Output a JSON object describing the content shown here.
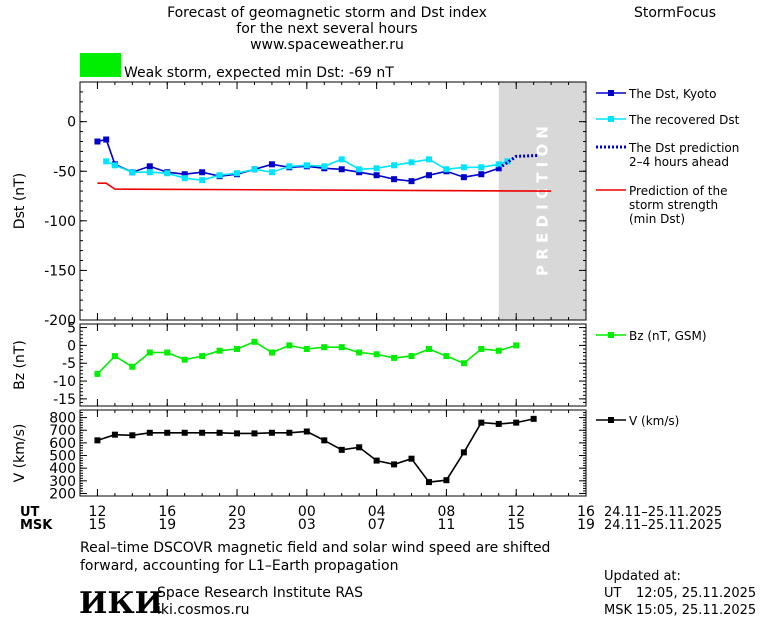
{
  "header": {
    "title_line1": "Forecast of geomagnetic storm and Dst index",
    "title_line2": "for the next several hours",
    "website": "www.spaceweather.ru",
    "brand": "StormFocus",
    "storm_label": "Weak storm, expected min Dst: -69 nT",
    "storm_color": "#00ee00"
  },
  "time_axis": {
    "ut_label": "UT",
    "msk_label": "MSK",
    "ut_ticks": [
      "12",
      "16",
      "20",
      "00",
      "04",
      "08",
      "12",
      "16"
    ],
    "msk_ticks": [
      "15",
      "19",
      "23",
      "03",
      "07",
      "11",
      "15",
      "19"
    ],
    "ut_date_range": "24.11–25.11.2025",
    "msk_date_range": "24.11–25.11.2025"
  },
  "prediction_band": {
    "label": "P R E D I C T I O N",
    "color": "#d8d8d8"
  },
  "chart_data": [
    {
      "type": "line",
      "ylabel": "Dst (nT)",
      "ylim": [
        -200,
        40
      ],
      "yticks": [
        0,
        -50,
        -100,
        -150,
        -200
      ],
      "series": [
        {
          "name": "The Dst, Kyoto",
          "color": "#0000cc",
          "marker": "square",
          "points": [
            [
              12.0,
              -20
            ],
            [
              12.5,
              -18
            ],
            [
              13.0,
              -43
            ],
            [
              14.0,
              -51
            ],
            [
              15.0,
              -45
            ],
            [
              16.0,
              -51
            ],
            [
              17.0,
              -53
            ],
            [
              18.0,
              -51
            ],
            [
              19.0,
              -55
            ],
            [
              20.0,
              -53
            ],
            [
              21.0,
              -48
            ],
            [
              22.0,
              -43
            ],
            [
              23.0,
              -46
            ],
            [
              24.0,
              -45
            ],
            [
              25.0,
              -47
            ],
            [
              26.0,
              -48
            ],
            [
              27.0,
              -51
            ],
            [
              28.0,
              -54
            ],
            [
              29.0,
              -58
            ],
            [
              30.0,
              -60
            ],
            [
              31.0,
              -54
            ],
            [
              32.0,
              -50
            ],
            [
              33.0,
              -56
            ],
            [
              34.0,
              -53
            ],
            [
              35.0,
              -47
            ]
          ]
        },
        {
          "name": "The recovered Dst",
          "color": "#00e5ff",
          "marker": "square",
          "points": [
            [
              12.5,
              -40
            ],
            [
              13.0,
              -44
            ],
            [
              14.0,
              -51
            ],
            [
              15.0,
              -51
            ],
            [
              16.0,
              -52
            ],
            [
              17.0,
              -57
            ],
            [
              18.0,
              -59
            ],
            [
              19.0,
              -54
            ],
            [
              20.0,
              -52
            ],
            [
              21.0,
              -48
            ],
            [
              22.0,
              -51
            ],
            [
              23.0,
              -45
            ],
            [
              24.0,
              -44
            ],
            [
              25.0,
              -45
            ],
            [
              26.0,
              -38
            ],
            [
              27.0,
              -48
            ],
            [
              28.0,
              -47
            ],
            [
              29.0,
              -44
            ],
            [
              30.0,
              -41
            ],
            [
              31.0,
              -38
            ],
            [
              32.0,
              -48
            ],
            [
              33.0,
              -46
            ],
            [
              34.0,
              -46
            ],
            [
              35.0,
              -43
            ],
            [
              35.5,
              -40
            ]
          ]
        },
        {
          "name": "The Dst prediction",
          "name_line2": "2–4 hours ahead",
          "color": "#0000cc",
          "style": "dotted",
          "points": [
            [
              35.0,
              -47
            ],
            [
              36.0,
              -35
            ],
            [
              37.3,
              -34
            ]
          ]
        },
        {
          "name": "Prediction of the",
          "name_line2": "storm strength",
          "name_line3": "(min Dst)",
          "color": "#ee0000",
          "style": "solid",
          "points": [
            [
              12.0,
              -62
            ],
            [
              12.5,
              -62
            ],
            [
              13.0,
              -68
            ],
            [
              38.0,
              -70
            ]
          ]
        }
      ]
    },
    {
      "type": "line",
      "ylabel": "Bz (nT)",
      "ylim": [
        -17,
        6
      ],
      "yticks": [
        5,
        0,
        -5,
        -10,
        -15
      ],
      "series": [
        {
          "name": "Bz (nT, GSM)",
          "color": "#00ee00",
          "marker": "square",
          "points": [
            [
              12.0,
              -8
            ],
            [
              13.0,
              -3
            ],
            [
              14.0,
              -6
            ],
            [
              15.0,
              -2
            ],
            [
              16.0,
              -2
            ],
            [
              17.0,
              -4
            ],
            [
              18.0,
              -3
            ],
            [
              19.0,
              -1.5
            ],
            [
              20.0,
              -1
            ],
            [
              21.0,
              1
            ],
            [
              22.0,
              -2
            ],
            [
              23.0,
              0
            ],
            [
              24.0,
              -1
            ],
            [
              25.0,
              -0.5
            ],
            [
              26.0,
              -0.5
            ],
            [
              27.0,
              -2
            ],
            [
              28.0,
              -2.5
            ],
            [
              29.0,
              -3.5
            ],
            [
              30.0,
              -3
            ],
            [
              31.0,
              -1
            ],
            [
              32.0,
              -3
            ],
            [
              33.0,
              -5
            ],
            [
              34.0,
              -1
            ],
            [
              35.0,
              -1.5
            ],
            [
              36.0,
              0
            ]
          ]
        }
      ]
    },
    {
      "type": "line",
      "ylabel": "V (km/s)",
      "ylim": [
        180,
        860
      ],
      "yticks": [
        800,
        700,
        600,
        500,
        400,
        300,
        200
      ],
      "series": [
        {
          "name": "V (km/s)",
          "color": "#000000",
          "marker": "square",
          "points": [
            [
              12.0,
              620
            ],
            [
              13.0,
              665
            ],
            [
              14.0,
              660
            ],
            [
              15.0,
              680
            ],
            [
              16.0,
              680
            ],
            [
              17.0,
              680
            ],
            [
              18.0,
              680
            ],
            [
              19.0,
              680
            ],
            [
              20.0,
              675
            ],
            [
              21.0,
              675
            ],
            [
              22.0,
              680
            ],
            [
              23.0,
              680
            ],
            [
              24.0,
              690
            ],
            [
              25.0,
              620
            ],
            [
              26.0,
              545
            ],
            [
              27.0,
              565
            ],
            [
              28.0,
              460
            ],
            [
              29.0,
              430
            ],
            [
              30.0,
              475
            ],
            [
              31.0,
              290
            ],
            [
              32.0,
              305
            ],
            [
              33.0,
              525
            ],
            [
              34.0,
              760
            ],
            [
              35.0,
              750
            ],
            [
              36.0,
              760
            ],
            [
              37.0,
              790
            ]
          ]
        }
      ]
    }
  ],
  "footer": {
    "note_line1": "Real–time DSCOVR magnetic field and solar wind speed are shifted",
    "note_line2": "forward, accounting for L1–Earth propagation",
    "logo_text": "ИКИ",
    "institute": "Space Research Institute RAS",
    "institute_url": "iki.cosmos.ru",
    "updated_label": "Updated at:",
    "updated_ut_label": "UT",
    "updated_ut_time": "12:05, 25.11.2025",
    "updated_msk_label": "MSK",
    "updated_msk_time": "15:05, 25.11.2025"
  }
}
